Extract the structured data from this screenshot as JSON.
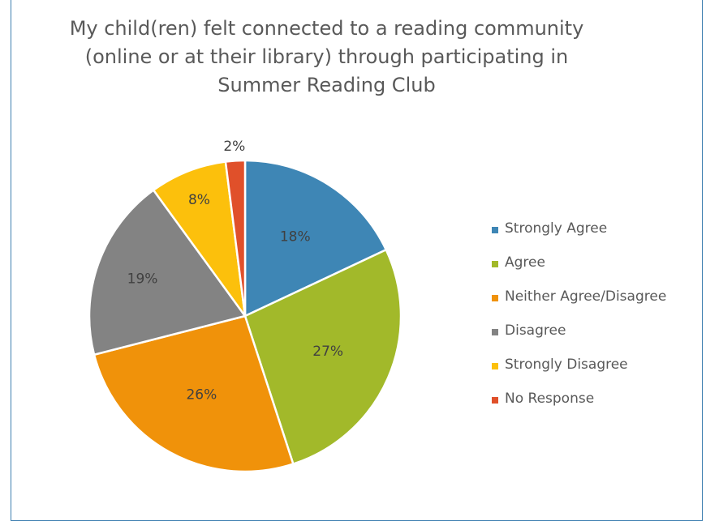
{
  "chart_data": {
    "type": "pie",
    "title_lines": [
      "My child(ren) felt connected to a reading community",
      "(online or at their library) through participating in",
      "Summer Reading Club"
    ],
    "categories": [
      "Strongly Agree",
      "Agree",
      "Neither Agree/Disagree",
      "Disagree",
      "Strongly Disagree",
      "No Response"
    ],
    "values": [
      18,
      27,
      26,
      19,
      8,
      2
    ],
    "data_labels": [
      "18%",
      "27%",
      "26%",
      "19%",
      "8%",
      "2%"
    ],
    "unit": "%",
    "colors": [
      "#3e86b5",
      "#a2b92a",
      "#f0920a",
      "#838383",
      "#fcc00c",
      "#e0502a"
    ],
    "legend_position": "right"
  }
}
